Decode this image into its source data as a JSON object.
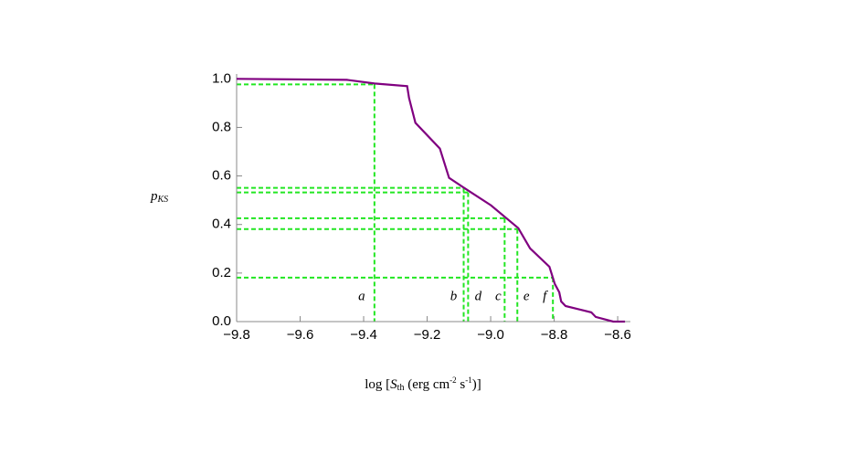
{
  "chart_data": {
    "type": "line",
    "y_label": [
      "p",
      "KS"
    ],
    "x_label": [
      "log [",
      "S",
      "th",
      " (erg cm",
      "-2",
      " s",
      "-1",
      ")]"
    ],
    "xlim": [
      -9.8,
      -8.56
    ],
    "ylim": [
      0,
      1.02
    ],
    "xticks": [
      {
        "value": -9.8,
        "label": "−9.8"
      },
      {
        "value": -9.6,
        "label": "−9.6"
      },
      {
        "value": -9.4,
        "label": "−9.4"
      },
      {
        "value": -9.2,
        "label": "−9.2"
      },
      {
        "value": -9.0,
        "label": "−9.0"
      },
      {
        "value": -8.8,
        "label": "−8.8"
      },
      {
        "value": -8.6,
        "label": "−8.6"
      }
    ],
    "yticks": [
      {
        "value": 0,
        "label": "0.0"
      },
      0.2,
      0.4,
      0.6,
      0.8,
      {
        "value": 1,
        "label": "1.0"
      }
    ],
    "series": [
      {
        "color": "#800080",
        "x": [
          -9.8,
          -9.453,
          -9.366,
          -9.263,
          -9.257,
          -9.237,
          -9.16,
          -9.131,
          -9.079,
          -8.999,
          -8.913,
          -8.876,
          -8.815,
          -8.798,
          -8.784,
          -8.778,
          -8.764,
          -8.683,
          -8.669,
          -8.614,
          -8.577
        ],
        "values": [
          1.0,
          0.996,
          0.981,
          0.97,
          0.921,
          0.819,
          0.713,
          0.592,
          0.547,
          0.479,
          0.385,
          0.302,
          0.226,
          0.155,
          0.121,
          0.083,
          0.064,
          0.038,
          0.019,
          0.0,
          0.0
        ]
      }
    ],
    "guide_color": "#22e622",
    "thresholds": [
      {
        "label": "a",
        "x": -9.366,
        "y": 0.977
      },
      {
        "label": "b",
        "x": -9.085,
        "y": 0.551
      },
      {
        "label": "d",
        "x": -9.071,
        "y": 0.532
      },
      {
        "label": "c",
        "x": -8.956,
        "y": 0.426
      },
      {
        "label": "e",
        "x": -8.916,
        "y": 0.381
      },
      {
        "label": "f",
        "x": -8.804,
        "y": 0.181
      }
    ]
  }
}
